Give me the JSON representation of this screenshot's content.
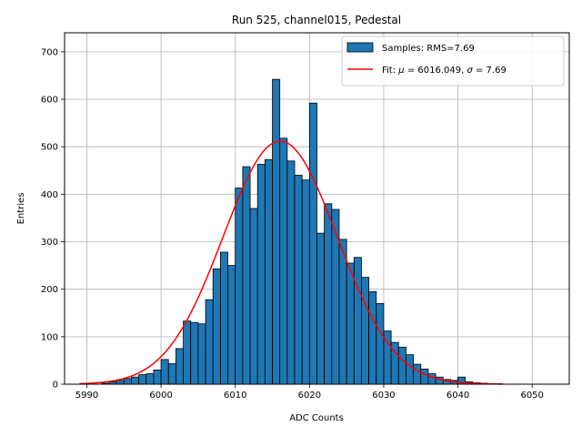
{
  "chart_data": {
    "type": "bar",
    "title": "Run 525, channel015, Pedestal",
    "xlabel": "ADC Counts",
    "ylabel": "Entries",
    "xlim": [
      5987,
      6055
    ],
    "ylim": [
      0,
      740
    ],
    "xticks": [
      5990,
      6000,
      6010,
      6020,
      6030,
      6040,
      6050
    ],
    "yticks": [
      0,
      100,
      200,
      300,
      400,
      500,
      600,
      700
    ],
    "grid": true,
    "legend_position": "top-right",
    "colors": {
      "bars": "#1f77b4",
      "bar_edge": "#000000",
      "fit": "#ff0000",
      "grid": "#b0b0b0"
    },
    "histogram": {
      "name": "Samples: RMS=7.69",
      "bin_start": 5990,
      "bin_width": 1,
      "counts": [
        0,
        0,
        2,
        5,
        8,
        12,
        15,
        20,
        22,
        30,
        52,
        43,
        75,
        133,
        130,
        127,
        178,
        243,
        278,
        250,
        413,
        458,
        370,
        463,
        473,
        642,
        518,
        470,
        440,
        430,
        592,
        318,
        380,
        368,
        305,
        255,
        267,
        225,
        195,
        170,
        112,
        88,
        78,
        62,
        42,
        32,
        22,
        15,
        10,
        8,
        15,
        5,
        3,
        2,
        1,
        1,
        0
      ]
    },
    "fit": {
      "name": "Fit: μ = 6016.049, σ = 7.69",
      "legend_parts": [
        "Fit: ",
        "μ",
        " = 6016.049, ",
        "σ",
        " = 7.69"
      ],
      "mu": 6016.049,
      "sigma": 7.69,
      "amplitude": 512,
      "x_range": [
        5989,
        6046
      ]
    }
  }
}
